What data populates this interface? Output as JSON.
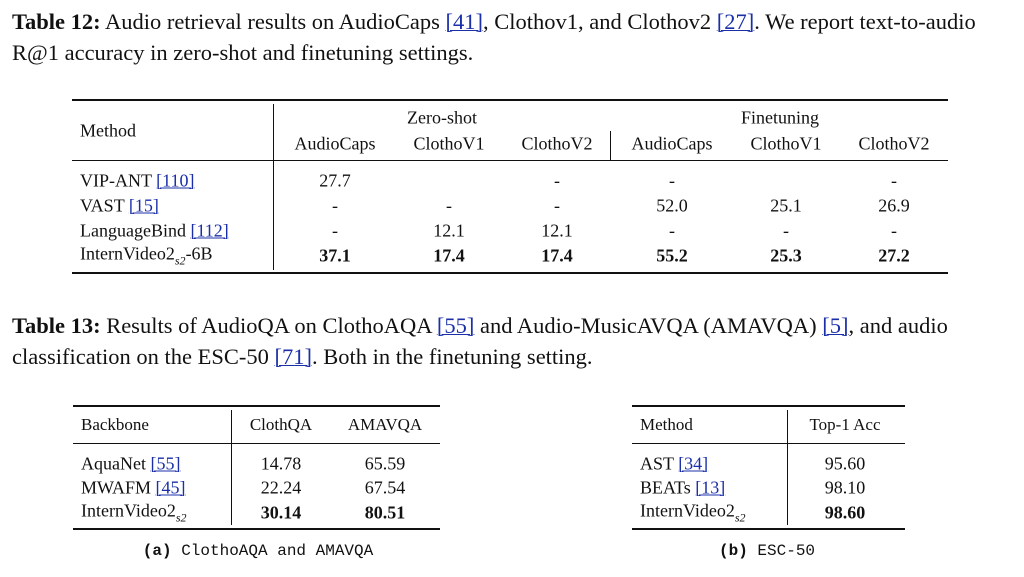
{
  "table12": {
    "label": "Table 12:",
    "caption": [
      "Audio retrieval results on AudioCaps ",
      "[41]",
      ", Clothov1, and Clothov2 ",
      "[27]",
      ". We report text-to-audio R@1 accuracy in zero-shot and finetuning settings."
    ],
    "method_header": "Method",
    "groups": [
      "Zero-shot",
      "Finetuning"
    ],
    "columns": [
      "AudioCaps",
      "ClothoV1",
      "ClothoV2",
      "AudioCaps",
      "ClothoV1",
      "ClothoV2"
    ],
    "rows": [
      {
        "method": "VIP-ANT",
        "ref": "[110]",
        "values": [
          "27.7",
          null,
          "-",
          "-",
          null,
          "-"
        ]
      },
      {
        "method": "VAST",
        "ref": "[15]",
        "values": [
          "-",
          "-",
          "-",
          "52.0",
          "25.1",
          "26.9"
        ]
      },
      {
        "method": "LanguageBind",
        "ref": "[112]",
        "values": [
          "-",
          "12.1",
          "12.1",
          "-",
          "-",
          "-"
        ]
      },
      {
        "method": "InternVideo2",
        "sub": "s2",
        "suffix": "-6B",
        "values": [
          "37.1",
          "17.4",
          "17.4",
          "55.2",
          "25.3",
          "27.2"
        ]
      }
    ]
  },
  "table13": {
    "label": "Table 13:",
    "caption": [
      "Results of AudioQA on ClothoAQA ",
      "[55]",
      " and Audio-MusicAVQA (AMAVQA) ",
      "[5]",
      ", and audio classification on the ESC-50 ",
      "[71]",
      ". Both in the finetuning setting."
    ],
    "subtable_a": {
      "columns": [
        "Backbone",
        "ClothQA",
        "AMAVQA"
      ],
      "rows": [
        {
          "method": "AquaNet",
          "ref": "[55]",
          "values": [
            "14.78",
            "65.59"
          ]
        },
        {
          "method": "MWAFM",
          "ref": "[45]",
          "values": [
            "22.24",
            "67.54"
          ]
        },
        {
          "method": "InternVideo2",
          "sub": "s2",
          "values": [
            "30.14",
            "80.51"
          ]
        }
      ],
      "caption_label": "(a)",
      "caption": "ClothoAQA and AMAVQA"
    },
    "subtable_b": {
      "columns": [
        "Method",
        "Top-1 Acc"
      ],
      "rows": [
        {
          "method": "AST",
          "ref": "[34]",
          "values": [
            "95.60"
          ]
        },
        {
          "method": "BEATs",
          "ref": "[13]",
          "values": [
            "98.10"
          ]
        },
        {
          "method": "InternVideo2",
          "sub": "s2",
          "values": [
            "98.60"
          ]
        }
      ],
      "caption_label": "(b)",
      "caption": "ESC-50"
    }
  }
}
